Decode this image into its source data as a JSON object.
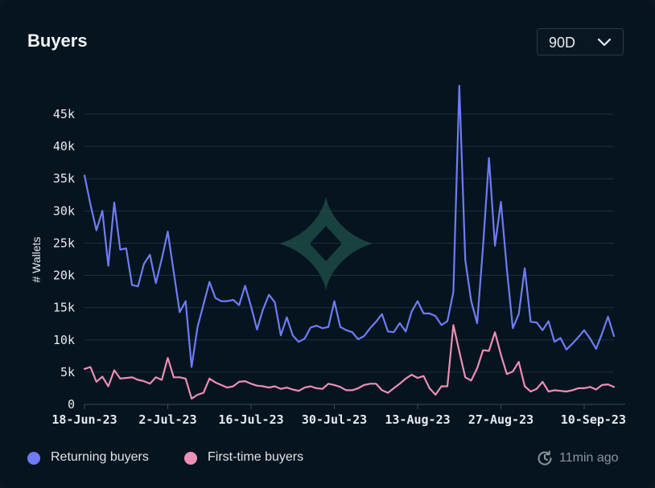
{
  "card": {
    "title": "Buyers",
    "range_select": {
      "value": "90D",
      "icon": "chevron-down-icon"
    },
    "updated": {
      "icon": "refresh-clock-icon",
      "text": "11min ago"
    }
  },
  "colors": {
    "background": "#06141f",
    "returning": "#6f7cf5",
    "first_time": "#ec8fb6",
    "grid": "#17303f",
    "watermark": "#1d4a44"
  },
  "chart_data": {
    "type": "line",
    "title": "Buyers",
    "xlabel": "",
    "ylabel": "# Wallets",
    "ylim": [
      0,
      45000
    ],
    "yticks": [
      0,
      5000,
      10000,
      15000,
      20000,
      25000,
      30000,
      35000,
      40000,
      45000
    ],
    "ytick_labels": [
      "0",
      "5k",
      "10k",
      "15k",
      "20k",
      "25k",
      "30k",
      "35k",
      "40k",
      "45k"
    ],
    "x_start": "18-Jun-23",
    "x_end": "15-Sep-23",
    "xticks": [
      "18-Jun-23",
      "2-Jul-23",
      "16-Jul-23",
      "30-Jul-23",
      "13-Aug-23",
      "27-Aug-23",
      "10-Sep-23"
    ],
    "grid": true,
    "legend_position": "bottom-left",
    "series": [
      {
        "name": "Returning buyers",
        "color": "#6f7cf5",
        "values": [
          35500,
          31000,
          27000,
          30000,
          21500,
          31300,
          24000,
          24200,
          18500,
          18300,
          21800,
          23200,
          18800,
          22600,
          26800,
          20500,
          14300,
          16000,
          5800,
          12000,
          15500,
          19000,
          16500,
          16000,
          16000,
          16200,
          15400,
          18400,
          15200,
          11600,
          14700,
          17000,
          15800,
          10700,
          13500,
          10700,
          9700,
          10200,
          11900,
          12200,
          11800,
          12000,
          16000,
          12000,
          11500,
          11200,
          10100,
          10600,
          11800,
          12800,
          14000,
          11300,
          11200,
          12600,
          11300,
          14400,
          16000,
          14100,
          14100,
          13700,
          12300,
          12900,
          17400,
          49400,
          22400,
          16000,
          12600,
          24500,
          38200,
          24600,
          31400,
          21000,
          11800,
          14000,
          21100,
          12800,
          12700,
          11500,
          12900,
          9700,
          10300,
          8500,
          9400,
          10400,
          11500,
          10200,
          8600,
          11000,
          13600,
          10600
        ],
        "legend_label": "Returning buyers"
      },
      {
        "name": "First-time buyers",
        "color": "#ec8fb6",
        "values": [
          5500,
          5800,
          3500,
          4300,
          2800,
          5300,
          4000,
          4100,
          4200,
          3800,
          3600,
          3200,
          4200,
          3800,
          7200,
          4200,
          4200,
          4000,
          900,
          1500,
          1800,
          4000,
          3400,
          3000,
          2600,
          2800,
          3500,
          3600,
          3200,
          2900,
          2800,
          2600,
          2800,
          2400,
          2600,
          2300,
          2100,
          2600,
          2800,
          2500,
          2400,
          3200,
          3000,
          2700,
          2200,
          2200,
          2500,
          3000,
          3200,
          3200,
          2200,
          1800,
          2500,
          3200,
          4000,
          4600,
          4100,
          4400,
          2500,
          1500,
          2800,
          2800,
          12300,
          8200,
          4200,
          3700,
          5600,
          8400,
          8300,
          11200,
          7700,
          4700,
          5100,
          6600,
          2800,
          2000,
          2400,
          3500,
          2000,
          2200,
          2100,
          2000,
          2200,
          2500,
          2500,
          2700,
          2300,
          3000,
          3100,
          2700
        ],
        "legend_label": "First-time buyers"
      }
    ]
  },
  "legend": {
    "items": [
      {
        "label": "Returning buyers",
        "color": "#6f7cf5"
      },
      {
        "label": "First-time buyers",
        "color": "#ec8fb6"
      }
    ]
  }
}
